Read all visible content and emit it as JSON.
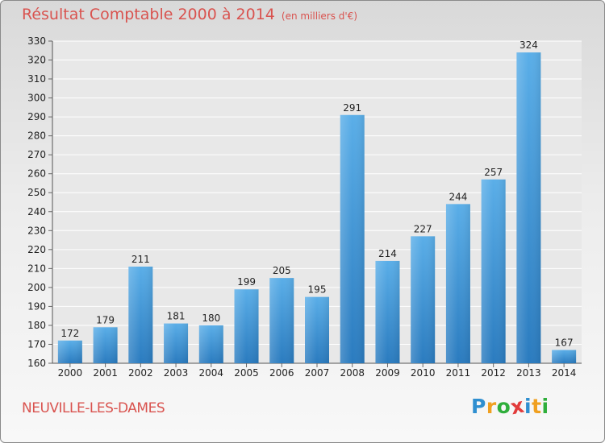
{
  "chart_data": {
    "type": "bar",
    "title": "Résultat Comptable 2000 à 2014",
    "unit": "(en milliers d'€)",
    "categories": [
      "2000",
      "2001",
      "2002",
      "2003",
      "2004",
      "2005",
      "2006",
      "2007",
      "2008",
      "2009",
      "2010",
      "2011",
      "2012",
      "2013",
      "2014"
    ],
    "values": [
      172,
      179,
      211,
      181,
      180,
      199,
      205,
      195,
      291,
      214,
      227,
      244,
      257,
      324,
      167
    ],
    "ylim": [
      160,
      330
    ],
    "yticks": [
      160,
      170,
      180,
      190,
      200,
      210,
      220,
      230,
      240,
      250,
      260,
      270,
      280,
      290,
      300,
      310,
      320,
      330
    ],
    "grid": true,
    "bar_color": "#3a8fd4"
  },
  "place_name": "NEUVILLE-LES-DAMES",
  "logo": {
    "letters": [
      "P",
      "r",
      "o",
      "x",
      "i",
      "t",
      "i"
    ],
    "colors": [
      "#2f8fd0",
      "#f0a020",
      "#2fae3b",
      "#e23b3b",
      "#2f8fd0",
      "#f0a020",
      "#2fae3b"
    ]
  }
}
